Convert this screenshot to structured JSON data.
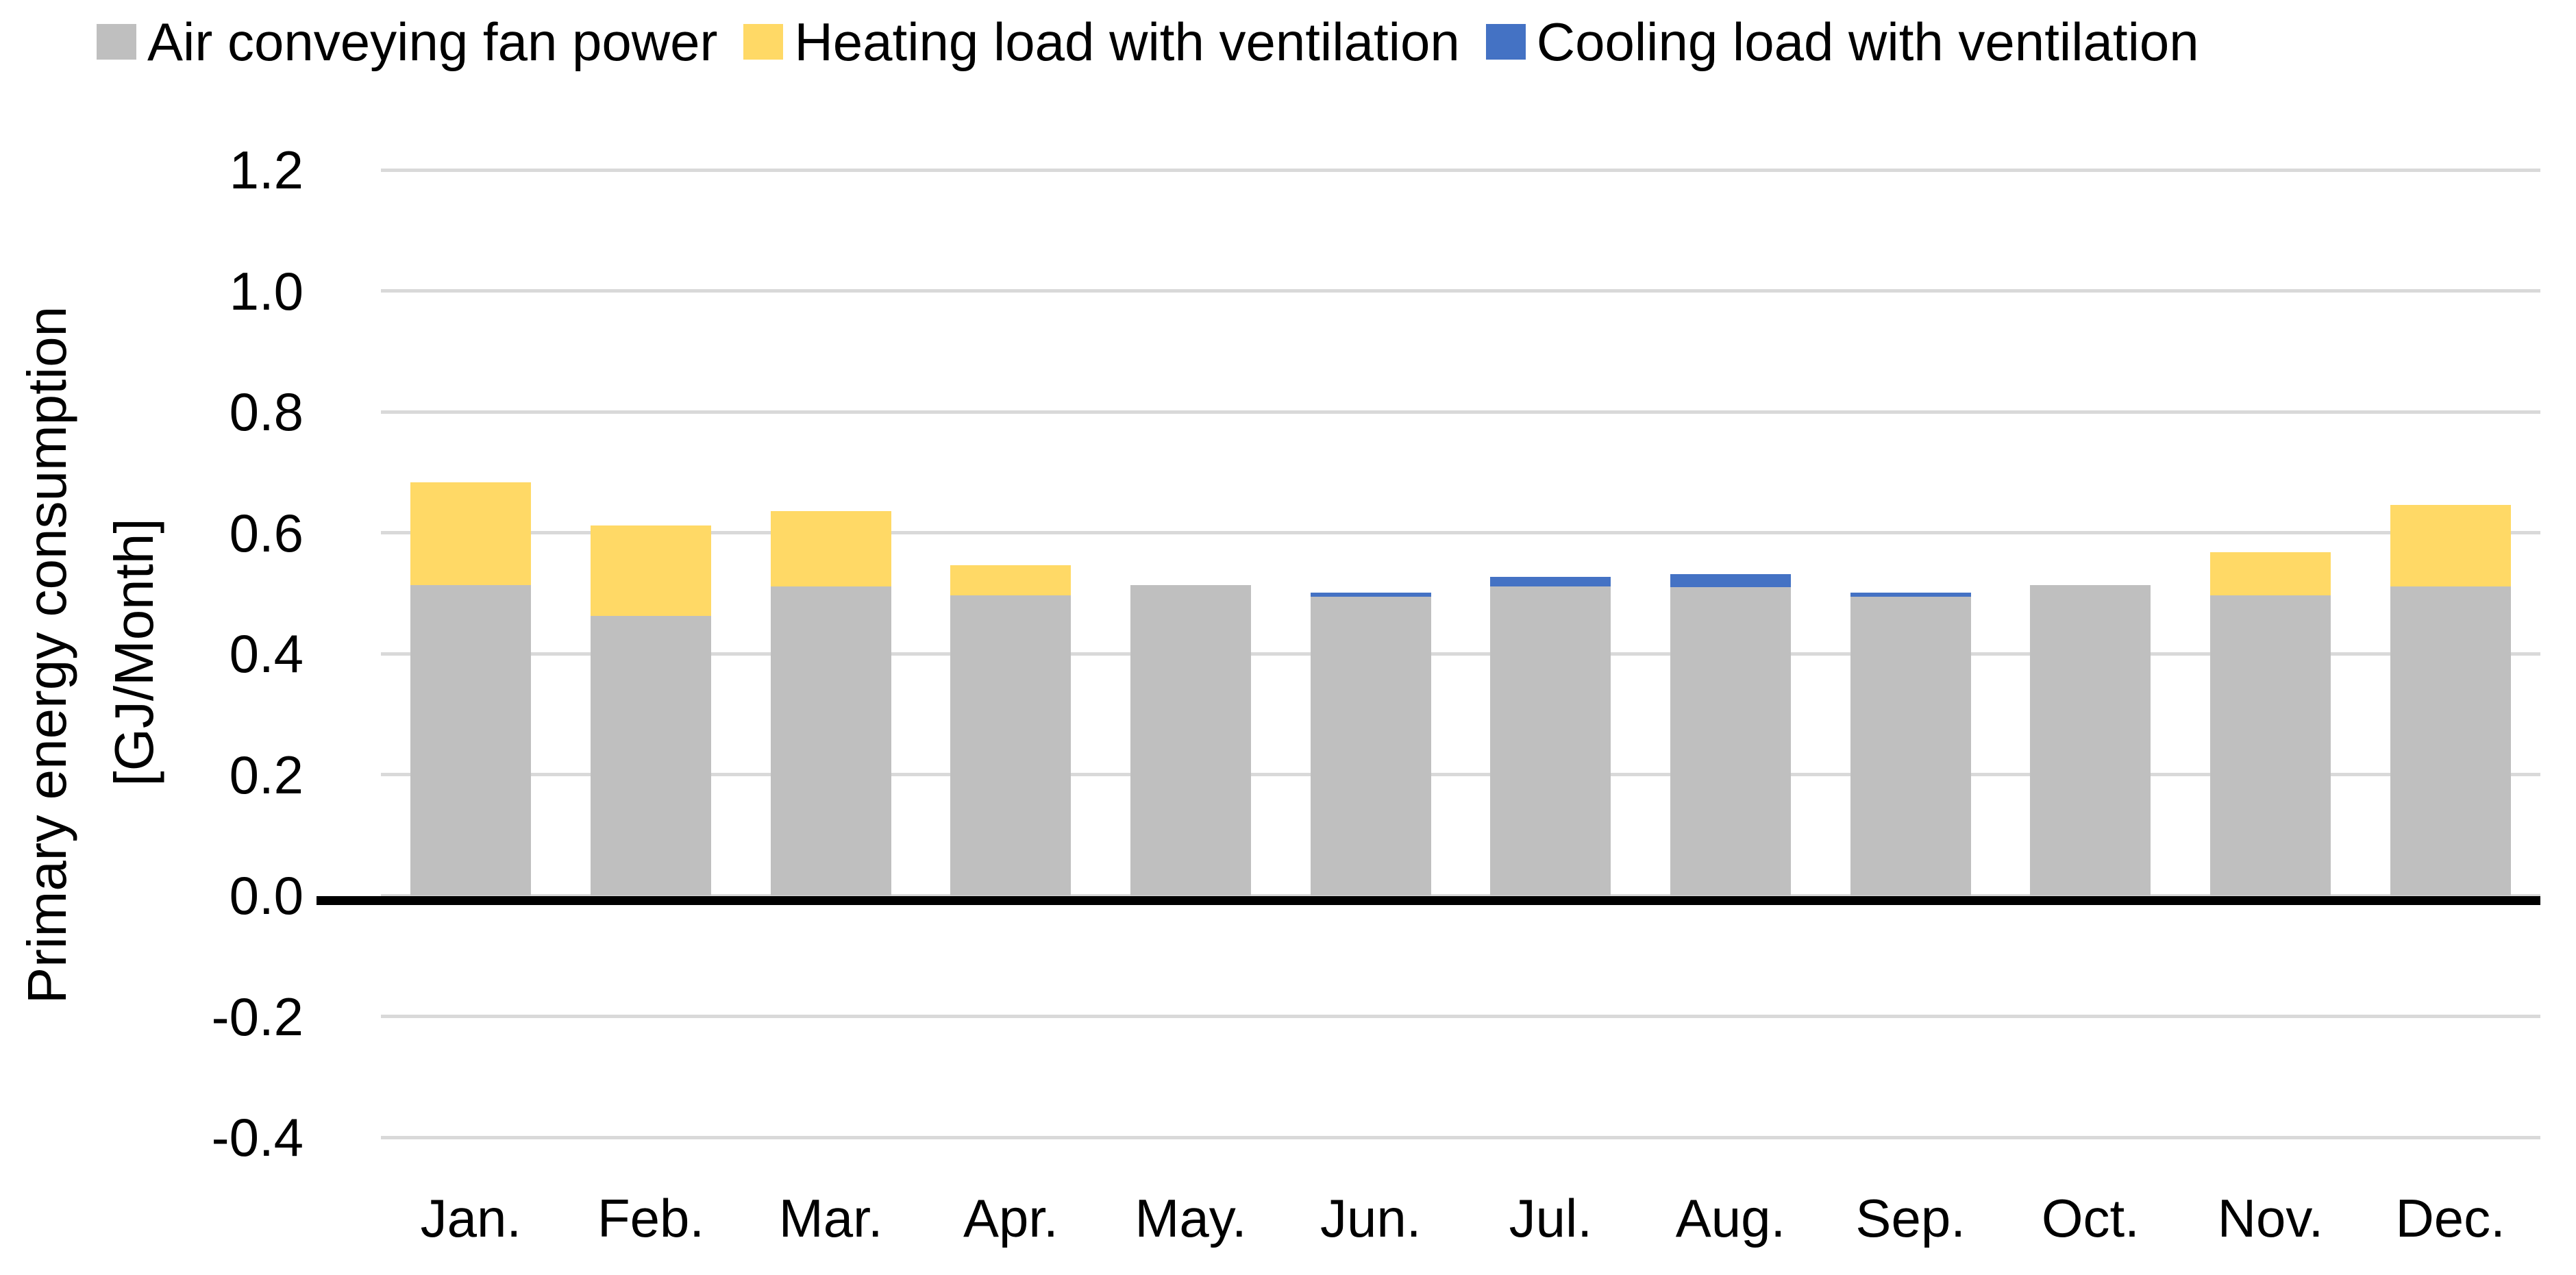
{
  "chart_data": {
    "type": "bar",
    "stacked": true,
    "title": "",
    "categories": [
      "Jan.",
      "Feb.",
      "Mar.",
      "Apr.",
      "May.",
      "Jun.",
      "Jul.",
      "Aug.",
      "Sep.",
      "Oct.",
      "Nov.",
      "Dec."
    ],
    "series": [
      {
        "name": "Air conveying fan power",
        "color": "#BFBFBF",
        "values": [
          0.513,
          0.462,
          0.511,
          0.496,
          0.513,
          0.494,
          0.511,
          0.51,
          0.494,
          0.513,
          0.496,
          0.511
        ]
      },
      {
        "name": "Heating load with ventilation",
        "color": "#FFD966",
        "values": [
          0.17,
          0.15,
          0.125,
          0.05,
          0,
          0,
          0,
          0,
          0,
          0,
          0.072,
          0.135
        ]
      },
      {
        "name": "Cooling load with ventilation",
        "color": "#4472C4",
        "values": [
          0,
          0,
          0,
          0,
          0,
          0.007,
          0.016,
          0.021,
          0.007,
          0,
          0,
          0
        ]
      }
    ],
    "ylabel_line1": "Primary energy consumption",
    "ylabel_line2": "[GJ/Month]",
    "xlabel": "",
    "ylim": [
      -0.4,
      1.2
    ],
    "ytick_step": 0.2,
    "ytick_labels": [
      "1.2",
      "1.0",
      "0.8",
      "0.6",
      "0.4",
      "0.2",
      "0.0",
      "-0.2",
      "-0.4"
    ],
    "grid": true,
    "legend_position": "top",
    "colors": {
      "background": "#FFFFFF",
      "gridline": "#D9D9D9",
      "zero_axis": "#000000",
      "text": "#000000"
    }
  }
}
